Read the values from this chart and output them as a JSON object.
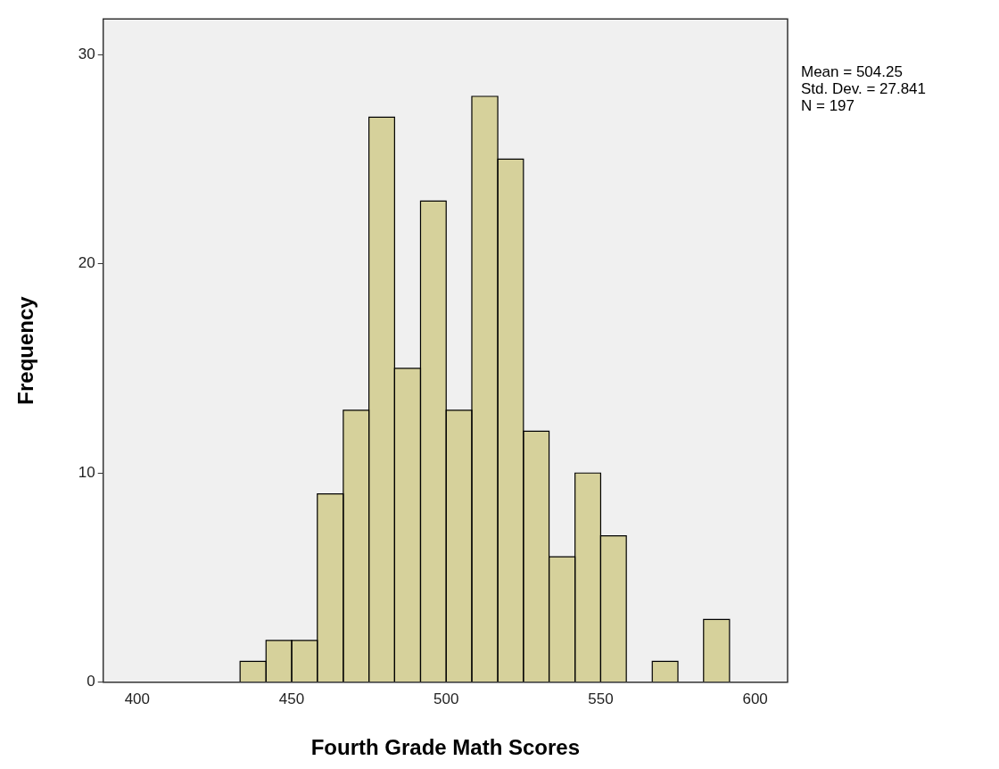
{
  "chart_data": {
    "type": "histogram",
    "xlabel": "Fourth Grade Math Scores",
    "ylabel": "Frequency",
    "bins": [
      433.3,
      441.7,
      450.0,
      458.3,
      466.7,
      475.0,
      483.3,
      491.7,
      500.0,
      508.3,
      516.7,
      525.0,
      533.3,
      541.7,
      550.0,
      558.3,
      566.7,
      575.0,
      583.3,
      591.7
    ],
    "values": [
      1,
      2,
      2,
      9,
      13,
      27,
      15,
      23,
      13,
      28,
      25,
      12,
      6,
      10,
      7,
      0,
      1,
      0,
      3
    ],
    "color": "#d6d19b",
    "xlim": [
      389,
      610.5
    ],
    "xticks": [
      400,
      450,
      500,
      550,
      600
    ],
    "ylim": [
      0,
      31.7
    ],
    "yticks": [
      0,
      10,
      20,
      30
    ],
    "grid": false,
    "annotations": [
      "Mean = 504.25",
      "Std. Dev. = 27.841",
      "N = 197"
    ]
  }
}
